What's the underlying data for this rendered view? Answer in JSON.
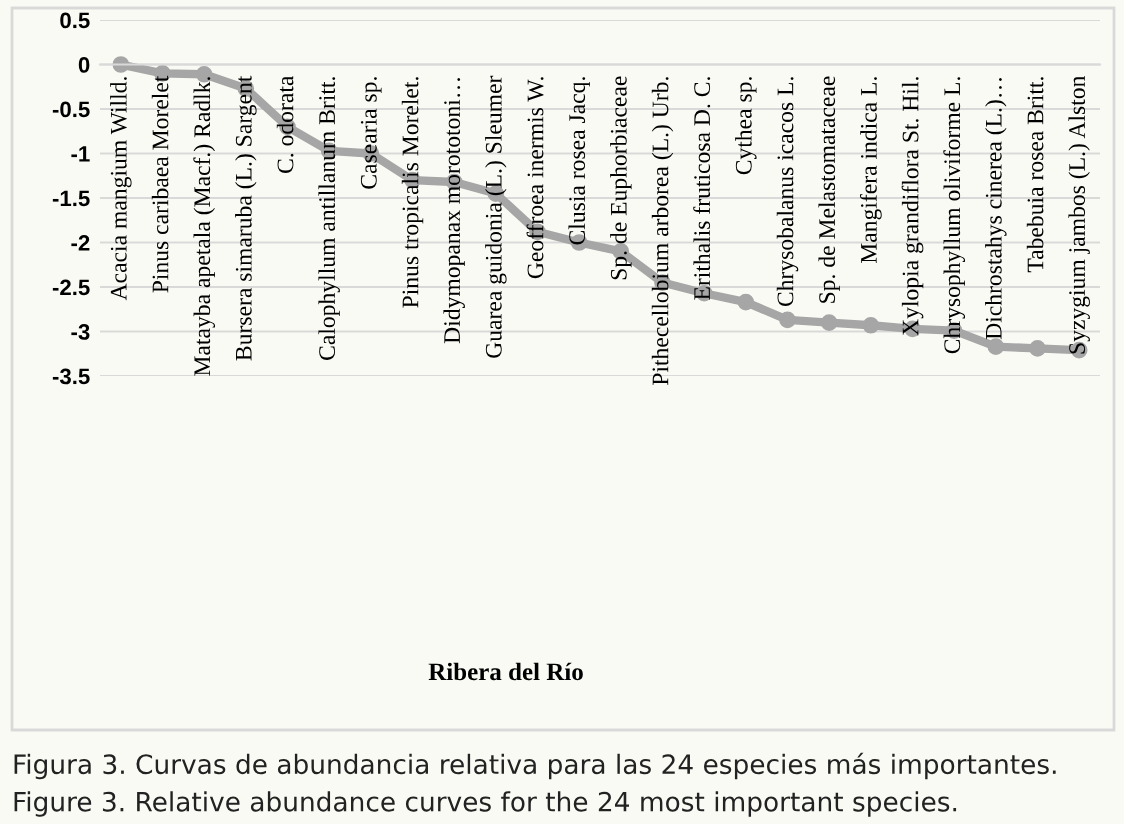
{
  "chart_data": {
    "type": "line",
    "categories": [
      "Acacia mangium Willd.",
      "Pinus caribaea Morelet",
      "Matayba apetala (Macf.) Radlk.",
      "Bursera simaruba (L.) Sargent",
      "C. odorata",
      "Calophyllum antillanum Britt.",
      "Casearia sp.",
      "Pinus tropicalis Morelet.",
      "Didymopanax morototoni…",
      "Guarea guidonia (L.) Sleumer",
      "Geoffroea inermis W.",
      "Clusia rosea Jacq.",
      "Sp. de Euphorbiaceae",
      "Pithecellobium arborea (L.) Urb.",
      "Erithalis fruticosa D. C.",
      "Cythea sp.",
      "Chrysobalanus icacos L.",
      "Sp. de Melastomataceae",
      "Mangifera indica L.",
      "Xylopia grandiflora St. Hil.",
      "Chrysophyllum oliviforme L.",
      "Dichrostahys cinerea (L.)…",
      "Tabebuia rosea Britt.",
      "Syzygium jambos (L.) Alston"
    ],
    "series": [
      {
        "color": "#a6a6a6",
        "values": [
          0,
          -0.1,
          -0.11,
          -0.27,
          -0.7,
          -0.97,
          -1.0,
          -1.3,
          -1.32,
          -1.45,
          -1.88,
          -2.0,
          -2.1,
          -2.45,
          -2.57,
          -2.67,
          -2.87,
          -2.9,
          -2.93,
          -2.97,
          -2.99,
          -3.17,
          -3.19,
          -3.21
        ]
      }
    ],
    "ylim": [
      -3.5,
      0.5
    ],
    "yticks": [
      -3.5,
      -3,
      -2.5,
      -2,
      -1.5,
      -1,
      -0.5,
      0,
      0.5
    ],
    "grid": "y",
    "legend": false,
    "marker": "circle",
    "line_style": "solid",
    "annotations": [
      "Ribera del Río",
      "Figura 3. Curvas de abundancia relativa para las 24 especies más importantes.",
      "Figure 3. Relative abundance curves for the 24 most important species."
    ]
  }
}
